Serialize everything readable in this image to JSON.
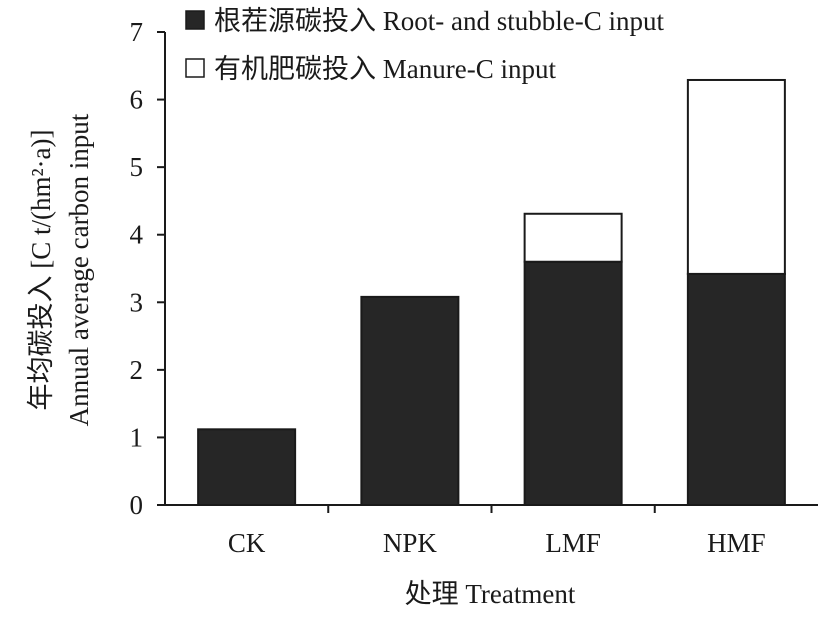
{
  "chart_data": {
    "type": "bar",
    "stacked": true,
    "categories": [
      "CK",
      "NPK",
      "LMF",
      "HMF"
    ],
    "series": [
      {
        "name": "根茬源碳投入 Root- and stubble-C input",
        "values": [
          1.12,
          3.08,
          3.6,
          3.42
        ],
        "color": "#262626"
      },
      {
        "name": "有机肥碳投入 Manure-C input",
        "values": [
          0,
          0,
          0.71,
          2.87
        ],
        "color": "#ffffff"
      }
    ],
    "xlabel": "处理 Treatment",
    "ylabel_cn": "年均碳投入 [C t/(hm²·a)]",
    "ylabel_en": "Annual average carbon input",
    "ylim": [
      0,
      7
    ],
    "yticks": [
      "0",
      "1",
      "2",
      "3",
      "4",
      "5",
      "6",
      "7"
    ],
    "grid": false,
    "legend_position": "top-left"
  }
}
